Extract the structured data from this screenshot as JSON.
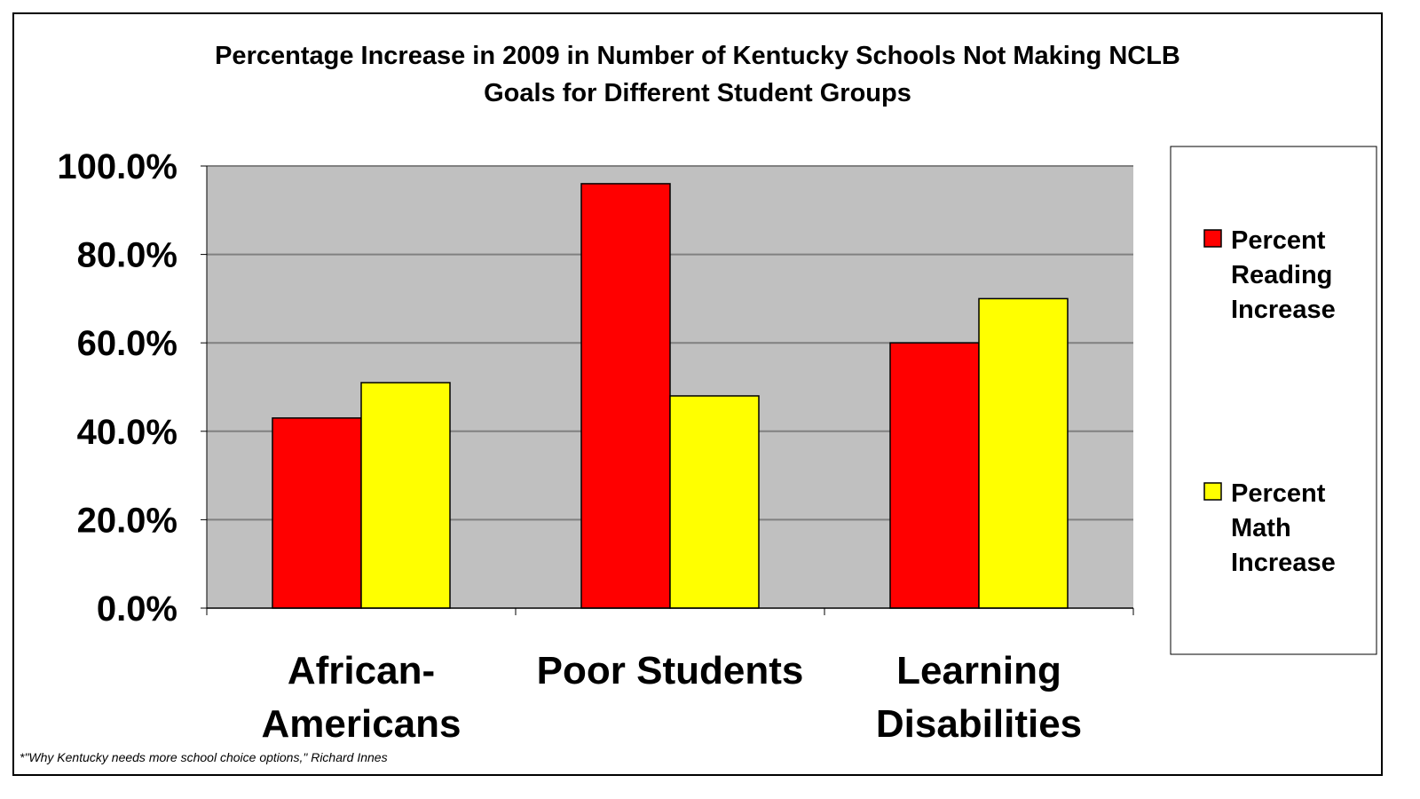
{
  "chart_data": {
    "type": "bar",
    "title": [
      "Percentage Increase in 2009 in Number of Kentucky Schools Not Making NCLB",
      "Goals for Different Student Groups"
    ],
    "categories": [
      [
        "African-",
        "Americans"
      ],
      [
        "Poor Students"
      ],
      [
        "Learning",
        "Disabilities"
      ]
    ],
    "series": [
      {
        "name": [
          "Percent",
          "Reading",
          "Increase"
        ],
        "color": "#ff0000",
        "values": [
          43,
          96,
          60
        ]
      },
      {
        "name": [
          "Percent",
          "Math",
          "Increase"
        ],
        "color": "#ffff00",
        "values": [
          51,
          48,
          70
        ]
      }
    ],
    "yticks": [
      "0.0%",
      "20.0%",
      "40.0%",
      "60.0%",
      "80.0%",
      "100.0%"
    ],
    "ylim": [
      0,
      100
    ],
    "xlabel": "",
    "ylabel": "",
    "grid": true,
    "plot_background": "#c0c0c0",
    "legend_position": "right",
    "footnote": "*\"Why Kentucky needs more school choice options,\" Richard Innes"
  }
}
